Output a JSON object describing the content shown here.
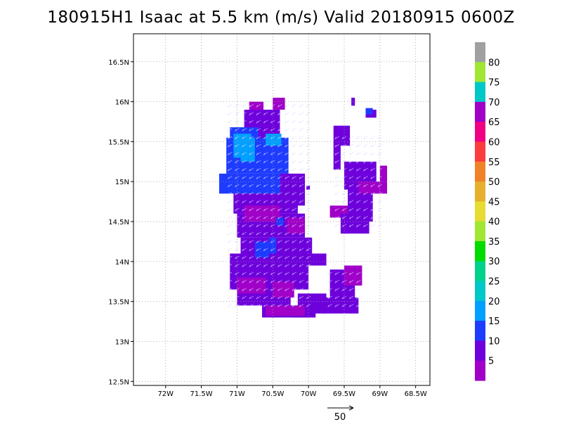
{
  "title": "180915H1 Isaac at 5.5 km (m/s) Valid 20180915 0600Z",
  "axes": {
    "lon_ticks": [
      "72W",
      "71.5W",
      "71W",
      "70.5W",
      "70W",
      "69.5W",
      "69W",
      "68.5W"
    ],
    "lat_ticks": [
      "16.5N",
      "16N",
      "15.5N",
      "15N",
      "14.5N",
      "14N",
      "13.5N",
      "13N",
      "12.5N"
    ],
    "lon_range": [
      -72.45,
      -68.3
    ],
    "lat_range": [
      12.45,
      16.85
    ],
    "grid": true
  },
  "colorbar": {
    "labels": [
      "5",
      "10",
      "15",
      "20",
      "25",
      "30",
      "35",
      "40",
      "45",
      "50",
      "55",
      "60",
      "65",
      "70",
      "75",
      "80"
    ],
    "colors": [
      "#a000c8",
      "#6e00dc",
      "#1e3cff",
      "#00a0ff",
      "#00c8c8",
      "#00d28c",
      "#00dc00",
      "#a0e632",
      "#e6dc32",
      "#e6af2d",
      "#f08228",
      "#fa3c3c",
      "#f00082",
      "#a000c8",
      "#00c8c8",
      "#a0e632",
      "#a0a0a0"
    ]
  },
  "reference_vector": {
    "label": "50"
  },
  "colors": {
    "purple": "#a000c8",
    "violet": "#6e00dc",
    "blue": "#1e3cff",
    "light_blue": "#00a0ff",
    "magenta": "#9600b4",
    "grid": "#999999"
  }
}
